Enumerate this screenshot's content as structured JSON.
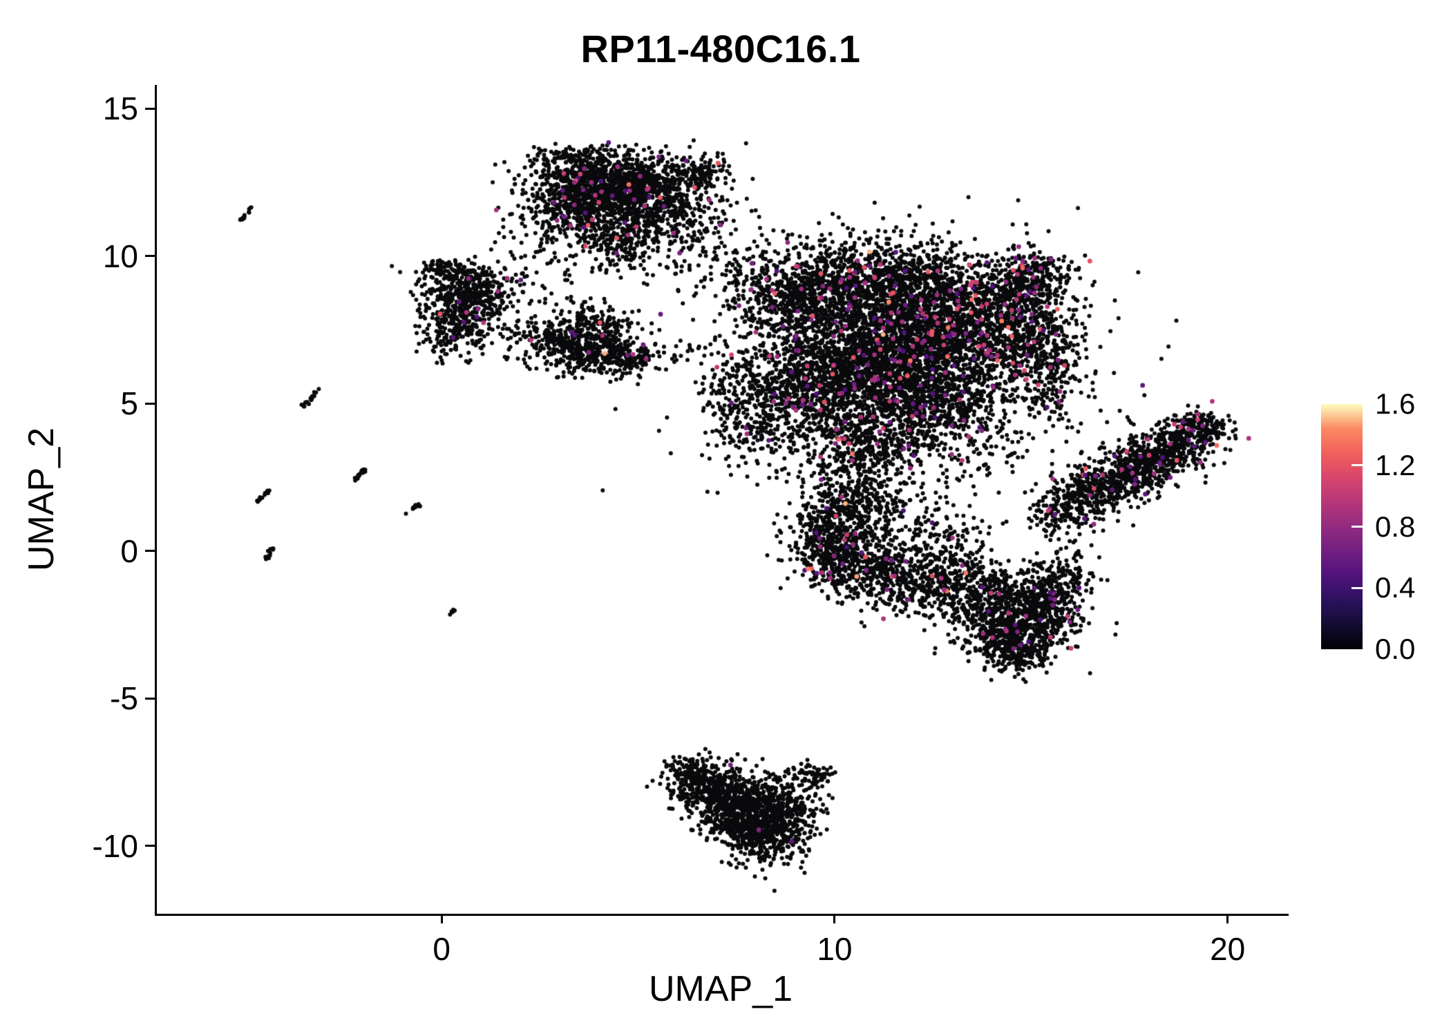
{
  "chart_data": {
    "type": "scatter",
    "title": "RP11-480C16.1",
    "xlabel": "UMAP_1",
    "ylabel": "UMAP_2",
    "xlim": [
      -7.3,
      21.5
    ],
    "ylim": [
      -12.3,
      15.8
    ],
    "xticks": [
      0,
      10,
      20
    ],
    "yticks": [
      15,
      10,
      5,
      0,
      -5,
      -10
    ],
    "grid": false,
    "background": "#ffffff",
    "axis_color": "#000000",
    "seed": 42,
    "colorbar": {
      "domain": [
        0.0,
        1.6
      ],
      "tick_values": [
        0.0,
        0.4,
        0.8,
        1.2,
        1.6
      ],
      "tick_labels": [
        "0.0",
        "0.4",
        "0.8",
        "1.2",
        "1.6"
      ],
      "stops": [
        "#000004",
        "#120d31",
        "#2c115f",
        "#51127c",
        "#721f81",
        "#932b80",
        "#b63679",
        "#d8456c",
        "#f1605d",
        "#fc8961",
        "#fcfdbf"
      ]
    },
    "points": {
      "base_color": "#0a0a0c",
      "radius_px": 3,
      "colored_radius_px": 3.4,
      "colored_value_range": [
        0.45,
        1.5
      ],
      "blob_format": [
        "n",
        "cx",
        "cy",
        "sx",
        "sy",
        "rot",
        "colored_frac"
      ],
      "clusters": [
        [
          800,
          4.2,
          12.6,
          1.05,
          0.5,
          0,
          0.03
        ],
        [
          500,
          3.5,
          11.8,
          0.75,
          0.55,
          0.3,
          0.025
        ],
        [
          450,
          5.2,
          11.9,
          0.8,
          0.55,
          -0.2,
          0.025
        ],
        [
          260,
          4.4,
          10.6,
          0.55,
          0.6,
          0,
          0.02
        ],
        [
          140,
          5.9,
          10.9,
          0.85,
          0.7,
          0,
          0.01
        ],
        [
          90,
          6.6,
          12.9,
          0.35,
          0.3,
          0,
          0.01
        ],
        [
          60,
          3.0,
          13.35,
          0.45,
          0.2,
          0,
          0.02
        ],
        [
          320,
          0.5,
          9.0,
          0.55,
          0.42,
          0,
          0.015
        ],
        [
          300,
          0.35,
          7.7,
          0.45,
          0.55,
          0,
          0.015
        ],
        [
          90,
          1.05,
          8.4,
          0.35,
          0.35,
          0,
          0.01
        ],
        [
          40,
          -0.1,
          9.6,
          0.3,
          0.15,
          0,
          0
        ],
        [
          450,
          3.3,
          7.3,
          0.8,
          0.5,
          0.15,
          0.02
        ],
        [
          220,
          3.9,
          6.75,
          0.6,
          0.4,
          0,
          0.02
        ],
        [
          70,
          4.7,
          6.6,
          0.4,
          0.25,
          0,
          0.01
        ],
        [
          850,
          9.2,
          8.7,
          1.0,
          0.85,
          0.2,
          0.035
        ],
        [
          1000,
          11.4,
          8.9,
          1.25,
          0.8,
          0,
          0.04
        ],
        [
          1500,
          12.9,
          7.3,
          1.25,
          1.05,
          0,
          0.055
        ],
        [
          1200,
          11.0,
          6.4,
          1.2,
          1.0,
          0,
          0.045
        ],
        [
          700,
          9.3,
          5.5,
          0.95,
          0.85,
          0,
          0.03
        ],
        [
          600,
          12.3,
          4.7,
          1.0,
          0.75,
          0,
          0.035
        ],
        [
          420,
          10.6,
          3.4,
          0.85,
          0.75,
          0,
          0.03
        ],
        [
          380,
          14.5,
          8.1,
          0.75,
          0.85,
          0,
          0.04
        ],
        [
          280,
          14.9,
          9.2,
          0.6,
          0.5,
          0.4,
          0.03
        ],
        [
          260,
          15.35,
          6.2,
          0.5,
          0.8,
          0,
          0.04
        ],
        [
          500,
          11.5,
          6.6,
          2.5,
          2.1,
          0,
          0.02
        ],
        [
          150,
          8.0,
          4.2,
          0.6,
          0.8,
          0,
          0.02
        ],
        [
          80,
          7.3,
          5.4,
          0.4,
          0.5,
          0,
          0.01
        ],
        [
          220,
          16.2,
          1.8,
          0.55,
          0.42,
          0.5,
          0.03
        ],
        [
          380,
          17.2,
          2.5,
          0.7,
          0.48,
          0.5,
          0.04
        ],
        [
          340,
          18.2,
          3.2,
          0.6,
          0.45,
          0.5,
          0.045
        ],
        [
          200,
          19.0,
          3.85,
          0.45,
          0.4,
          0.5,
          0.04
        ],
        [
          70,
          19.45,
          4.3,
          0.25,
          0.25,
          0.5,
          0.03
        ],
        [
          60,
          15.6,
          1.2,
          0.35,
          0.3,
          0,
          0.02
        ],
        [
          400,
          9.8,
          0.3,
          0.5,
          0.75,
          0,
          0.02
        ],
        [
          350,
          10.8,
          -0.5,
          0.75,
          0.6,
          -0.3,
          0.02
        ],
        [
          260,
          11.9,
          -1.1,
          0.7,
          0.5,
          -0.3,
          0.02
        ],
        [
          220,
          10.4,
          1.6,
          0.6,
          0.5,
          0,
          0.025
        ],
        [
          120,
          11.3,
          1.0,
          0.85,
          0.7,
          0,
          0.01
        ],
        [
          90,
          12.6,
          0.3,
          0.55,
          0.6,
          0,
          0.015
        ],
        [
          450,
          13.9,
          -1.6,
          0.75,
          0.6,
          0,
          0.02
        ],
        [
          420,
          15.0,
          -2.2,
          0.6,
          0.6,
          0,
          0.02
        ],
        [
          320,
          14.3,
          -2.9,
          0.6,
          0.45,
          0,
          0.02
        ],
        [
          180,
          15.6,
          -1.1,
          0.4,
          0.5,
          0,
          0.025
        ],
        [
          120,
          14.7,
          -3.6,
          0.45,
          0.3,
          0,
          0.01
        ],
        [
          60,
          13.2,
          -0.6,
          0.35,
          0.35,
          0,
          0.01
        ],
        [
          280,
          6.6,
          -7.9,
          0.5,
          0.4,
          0,
          0.002
        ],
        [
          420,
          7.6,
          -8.3,
          0.7,
          0.5,
          -0.2,
          0.002
        ],
        [
          340,
          8.5,
          -8.9,
          0.55,
          0.5,
          -0.2,
          0.002
        ],
        [
          280,
          8.2,
          -9.8,
          0.5,
          0.45,
          0,
          0.002
        ],
        [
          220,
          7.3,
          -9.1,
          0.45,
          0.4,
          0,
          0.002
        ],
        [
          70,
          9.3,
          -7.6,
          0.3,
          0.2,
          0,
          0.005
        ],
        [
          50,
          6.2,
          -7.35,
          0.25,
          0.2,
          0,
          0
        ],
        [
          45,
          5.7,
          6.7,
          0.9,
          0.25,
          0.1,
          0.01
        ],
        [
          40,
          2.1,
          9.3,
          0.7,
          0.5,
          0.4,
          0.01
        ],
        [
          35,
          7.0,
          11.2,
          0.5,
          0.9,
          0,
          0.01
        ],
        [
          30,
          7.5,
          9.8,
          0.6,
          0.6,
          0,
          0.01
        ],
        [
          30,
          2.3,
          10.3,
          0.5,
          0.4,
          0.3,
          0
        ],
        [
          25,
          6.3,
          9.6,
          0.5,
          0.5,
          0,
          0
        ],
        [
          25,
          13.5,
          0.3,
          0.7,
          0.5,
          0,
          0.01
        ],
        [
          20,
          16.2,
          -0.1,
          0.4,
          0.5,
          0,
          0.01
        ],
        [
          25,
          12.8,
          2.6,
          0.7,
          0.7,
          0,
          0.02
        ],
        [
          20,
          14.2,
          3.4,
          0.6,
          0.5,
          0,
          0.02
        ]
      ],
      "streak_format": [
        "x1",
        "y1",
        "x2",
        "y2",
        "n"
      ],
      "streaks": [
        [
          -5.15,
          11.2,
          -4.9,
          11.65,
          14
        ],
        [
          -3.55,
          4.9,
          -3.15,
          5.5,
          18
        ],
        [
          -4.75,
          1.65,
          -4.45,
          2.05,
          14
        ],
        [
          -2.35,
          2.3,
          -1.95,
          2.85,
          16
        ],
        [
          -0.95,
          1.3,
          -0.55,
          1.65,
          14
        ],
        [
          -4.55,
          -0.35,
          -4.35,
          0.1,
          12
        ],
        [
          0.15,
          -2.15,
          0.28,
          -2.0,
          6
        ]
      ]
    }
  }
}
